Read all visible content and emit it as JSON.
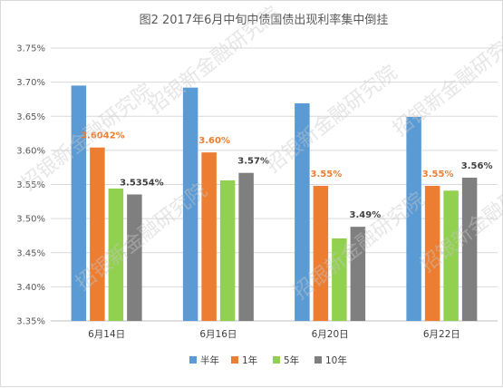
{
  "chart_data": {
    "type": "bar",
    "title": "图2 2017年6月中旬中债国债出现利率集中倒挂",
    "categories": [
      "6月14日",
      "6月16日",
      "6月20日",
      "6月22日"
    ],
    "series": [
      {
        "name": "半年",
        "color": "#5b9bd5",
        "values": [
          3.695,
          3.692,
          3.669,
          3.649
        ],
        "labels": [
          "",
          "",
          "",
          ""
        ]
      },
      {
        "name": "1年",
        "color": "#ed7d31",
        "values": [
          3.6042,
          3.597,
          3.548,
          3.548
        ],
        "labels": [
          "3.6042%",
          "3.60%",
          "3.55%",
          "3.55%"
        ]
      },
      {
        "name": "5年",
        "color": "#92d050",
        "values": [
          3.544,
          3.556,
          3.471,
          3.541
        ],
        "labels": [
          "",
          "",
          "",
          ""
        ]
      },
      {
        "name": "10年",
        "color": "#7f7f7f",
        "values": [
          3.5354,
          3.567,
          3.488,
          3.56
        ],
        "labels": [
          "3.5354%",
          "3.57%",
          "3.49%",
          "3.56%"
        ]
      }
    ],
    "label_colors": {
      "1年": "#ed7d31",
      "10年": "#404040"
    },
    "ylim": [
      3.35,
      3.75
    ],
    "ytick_step": 0.05,
    "ytick_labels": [
      "3.35%",
      "3.40%",
      "3.45%",
      "3.50%",
      "3.55%",
      "3.60%",
      "3.65%",
      "3.70%",
      "3.75%"
    ],
    "grid": true,
    "legend": "bottom",
    "watermark": "招银新金融研究院"
  }
}
